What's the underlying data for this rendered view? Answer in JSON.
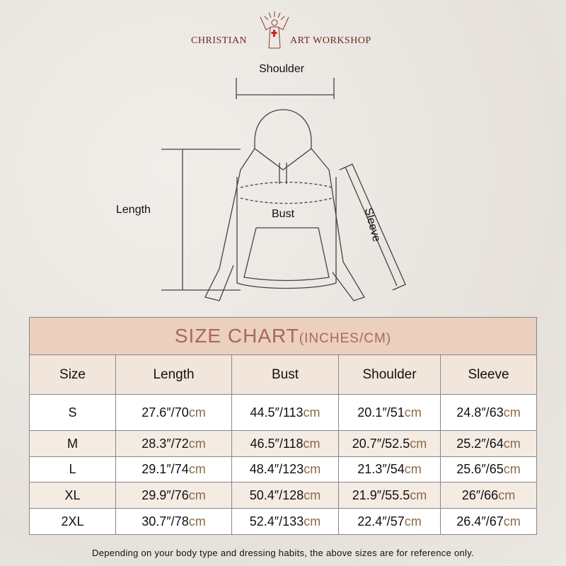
{
  "brand": {
    "left": "CHRISTIAN",
    "right": "ART WORKSHOP"
  },
  "diagram": {
    "shoulder": "Shoulder",
    "length": "Length",
    "bust": "Bust",
    "sleeve": "Sleeve"
  },
  "table": {
    "title": "SIZE CHART",
    "title_unit": "(INCHES/CM)",
    "headers": [
      "Size",
      "Length",
      "Bust",
      "Shoulder",
      "Sleeve"
    ],
    "unit_cm": "cm",
    "rows": [
      {
        "size": "S",
        "cells": [
          "27.6″/70",
          "44.5″/113",
          "20.1″/51",
          "24.8″/63"
        ]
      },
      {
        "size": "M",
        "cells": [
          "28.3″/72",
          "46.5″/118",
          "20.7″/52.5",
          "25.2″/64"
        ]
      },
      {
        "size": "L",
        "cells": [
          "29.1″/74",
          "48.4″/123",
          "21.3″/54",
          "25.6″/65"
        ]
      },
      {
        "size": "XL",
        "cells": [
          "29.9″/76",
          "50.4″/128",
          "21.9″/55.5",
          "26″/66"
        ]
      },
      {
        "size": "2XL",
        "cells": [
          "30.7″/78",
          "52.4″/133",
          "22.4″/57",
          "26.4″/67"
        ]
      }
    ]
  },
  "note": "Depending on your body type and dressing habits, the above sizes are for reference only."
}
